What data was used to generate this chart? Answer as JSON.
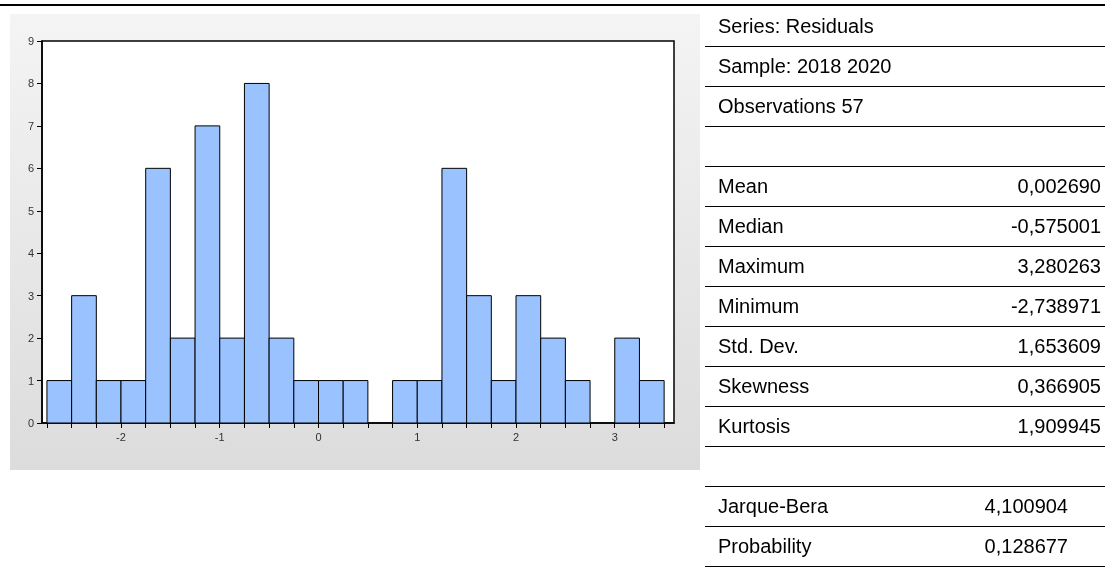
{
  "chart_data": [
    {
      "type": "histogram",
      "bins": [
        -2.75,
        -2.5,
        -2.25,
        -2,
        -1.75,
        -1.5,
        -1.25,
        -1,
        -0.75,
        -0.5,
        -0.25,
        0,
        0.25,
        0.5,
        0.75,
        1,
        1.25,
        1.5,
        1.75,
        2,
        2.25,
        2.5,
        2.75,
        3,
        3.25,
        3.5
      ],
      "values": [
        1,
        3,
        1,
        1,
        6,
        2,
        7,
        2,
        8,
        2,
        1,
        1,
        1,
        0,
        1,
        1,
        6,
        3,
        1,
        3,
        2,
        1,
        0,
        2,
        1
      ],
      "color": "#99c2ff",
      "xlim": [
        -2.8,
        3.6
      ],
      "xticks": [
        {
          "value": -2.75,
          "label": null
        },
        {
          "value": -2.5,
          "label": null
        },
        {
          "value": -2.25,
          "label": null
        },
        -2,
        {
          "value": -1.75,
          "label": null
        },
        {
          "value": -1.5,
          "label": null
        },
        {
          "value": -1.25,
          "label": null
        },
        -1,
        {
          "value": -0.75,
          "label": null
        },
        {
          "value": -0.5,
          "label": null
        },
        {
          "value": -0.25,
          "label": null
        },
        0,
        {
          "value": 0.25,
          "label": null
        },
        {
          "value": 0.5,
          "label": null
        },
        {
          "value": 0.75,
          "label": null
        },
        1,
        {
          "value": 1.25,
          "label": null
        },
        {
          "value": 1.5,
          "label": null
        },
        {
          "value": 1.75,
          "label": null
        },
        2,
        {
          "value": 2.25,
          "label": null
        },
        {
          "value": 2.5,
          "label": null
        },
        {
          "value": 2.75,
          "label": null
        },
        3,
        {
          "value": 3.25,
          "label": null
        },
        {
          "value": 3.5,
          "label": null
        }
      ],
      "ylim": [
        0,
        9
      ],
      "yticks": [
        0,
        1,
        2,
        3,
        4,
        5,
        6,
        7,
        8,
        9
      ],
      "grid": false
    },
    {
      "type": "other",
      "annotations": [
        "Series: Residuals",
        "Sample: 2018 2020",
        "Observations 57",
        "Mean",
        "0,002690",
        "Median",
        "-0,575001",
        "Maximum",
        "3,280263",
        "Minimum",
        "-2,738971",
        "Std. Dev.",
        "1,653609",
        "Skewness",
        "0,366905",
        "Kurtosis",
        "1,909945",
        "Jarque-Bera",
        "4,100904",
        "Probability",
        "0,128677"
      ]
    }
  ]
}
